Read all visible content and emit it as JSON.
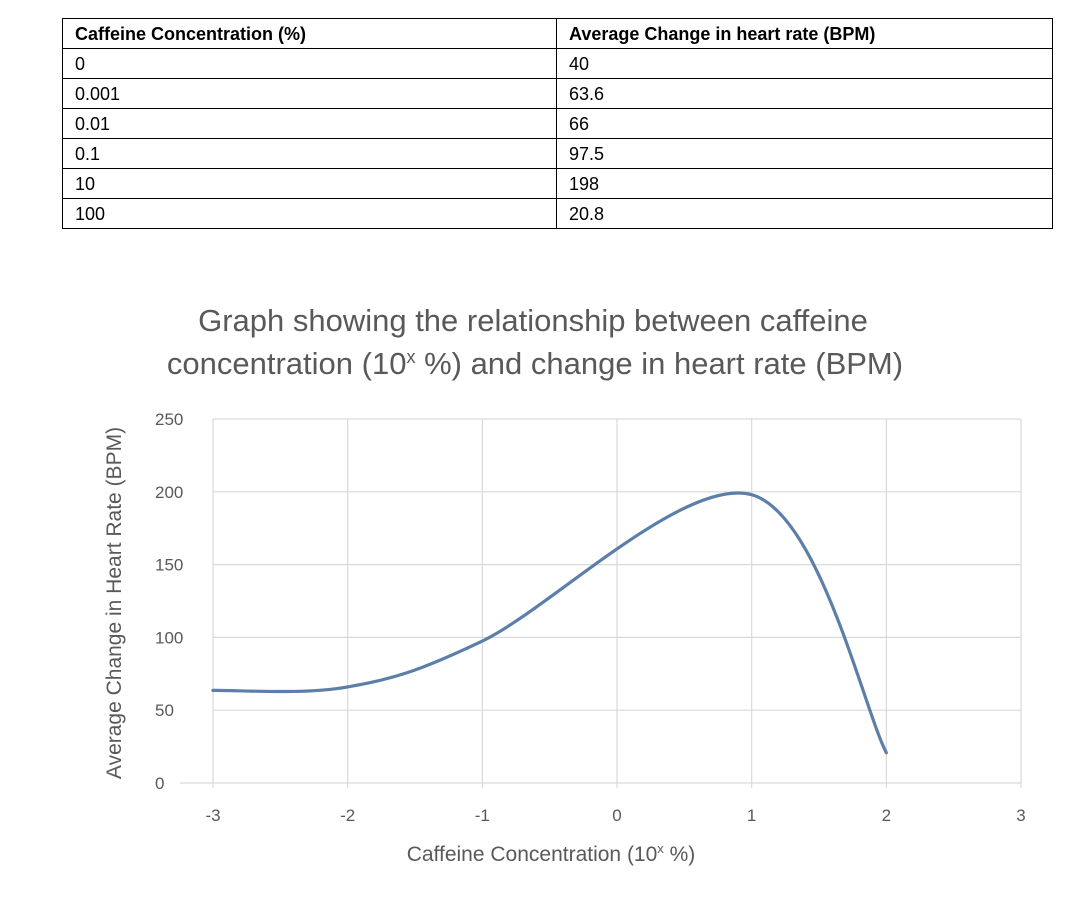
{
  "table": {
    "headers": [
      "Caffeine Concentration (%)",
      "Average Change in heart rate (BPM)"
    ],
    "rows": [
      [
        "0",
        "40"
      ],
      [
        "0.001",
        "63.6"
      ],
      [
        "0.01",
        "66"
      ],
      [
        "0.1",
        "97.5"
      ],
      [
        "10",
        "198"
      ],
      [
        "100",
        "20.8"
      ]
    ]
  },
  "chart_data": {
    "type": "line",
    "title_line1": "Graph showing the relationship between caffeine",
    "title_line2_prefix": "concentration (10",
    "title_line2_sup": "x",
    "title_line2_suffix": " %) and change in heart rate (BPM)",
    "xlabel_prefix": "Caffeine Concentration (10",
    "xlabel_sup": "x",
    "xlabel_suffix": " %)",
    "ylabel": "Average Change in Heart Rate (BPM)",
    "x_ticks": [
      "-3",
      "-2",
      "-1",
      "0",
      "1",
      "2",
      "3"
    ],
    "y_ticks": [
      "0",
      "50",
      "100",
      "150",
      "200",
      "250"
    ],
    "xlim": [
      -3,
      3
    ],
    "ylim": [
      0,
      250
    ],
    "grid": true,
    "smooth": true,
    "series": [
      {
        "x": [
          -3,
          -2,
          -1,
          1,
          2
        ],
        "y": [
          63.6,
          66,
          97.5,
          198,
          20.8
        ]
      }
    ],
    "line_color": "#5b7fa8",
    "grid_color": "#d9d9d9"
  }
}
